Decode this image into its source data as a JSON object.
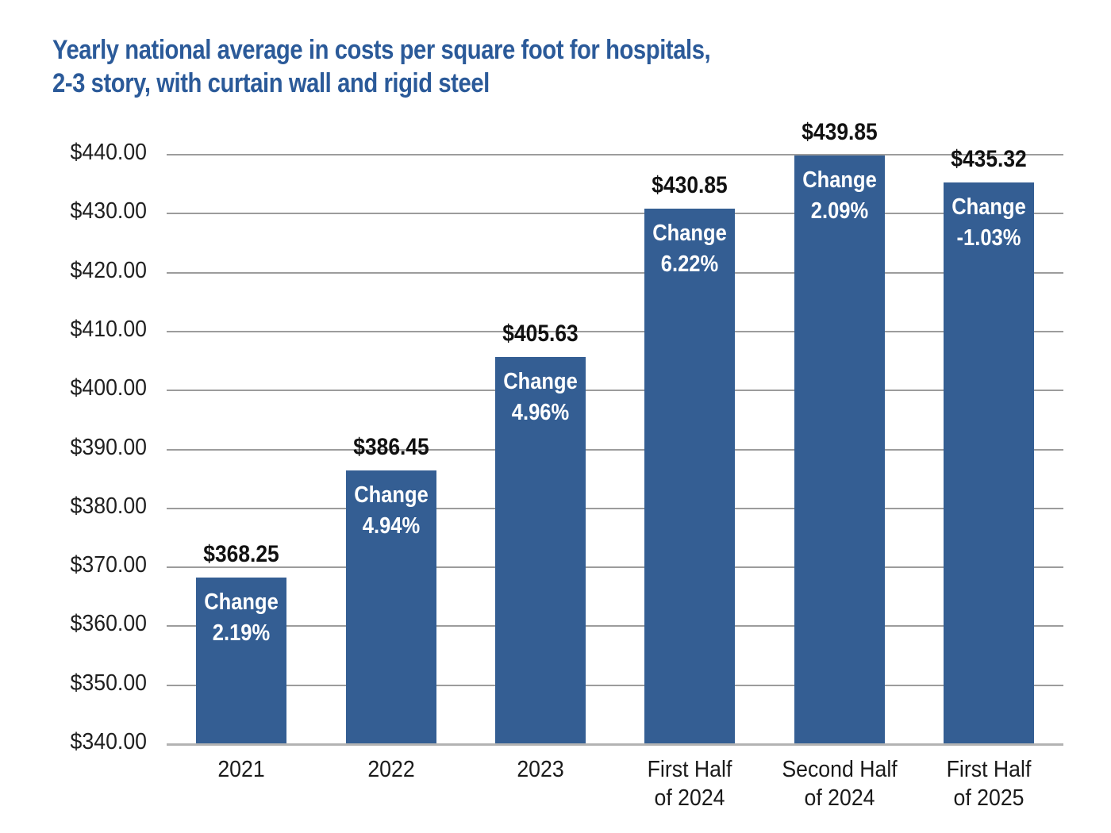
{
  "title": {
    "line1": "Yearly national average in costs per square foot for hospitals,",
    "line2": "2-3 story, with curtain wall and rigid steel"
  },
  "chart_data": {
    "type": "bar",
    "categories": [
      "2021",
      "2022",
      "2023",
      "First Half\nof 2024",
      "Second Half\nof 2024",
      "First Half\nof 2025"
    ],
    "values": [
      368.25,
      386.45,
      405.63,
      430.85,
      439.85,
      435.32
    ],
    "value_labels": [
      "$368.25",
      "$386.45",
      "$405.63",
      "$430.85",
      "$439.85",
      "$435.32"
    ],
    "change_word": "Change",
    "change_labels": [
      "2.19%",
      "4.94%",
      "4.96%",
      "6.22%",
      "2.09%",
      "-1.03%"
    ],
    "y_tick_labels": [
      "$340.00",
      "$350.00",
      "$360.00",
      "$370.00",
      "$380.00",
      "$390.00",
      "$400.00",
      "$410.00",
      "$420.00",
      "$430.00",
      "$440.00"
    ],
    "y_tick_values": [
      340,
      350,
      360,
      370,
      380,
      390,
      400,
      410,
      420,
      430,
      440
    ],
    "ylim": [
      340,
      440
    ],
    "grid": "horizontal",
    "legend": "none",
    "bar_color": "#345e93",
    "title_color": "#2b5a99",
    "gridline_color": "#9c9c9c",
    "axis_line_color": "#b3b3b3",
    "value_label_color": "#111111",
    "change_label_color": "#ffffff"
  }
}
